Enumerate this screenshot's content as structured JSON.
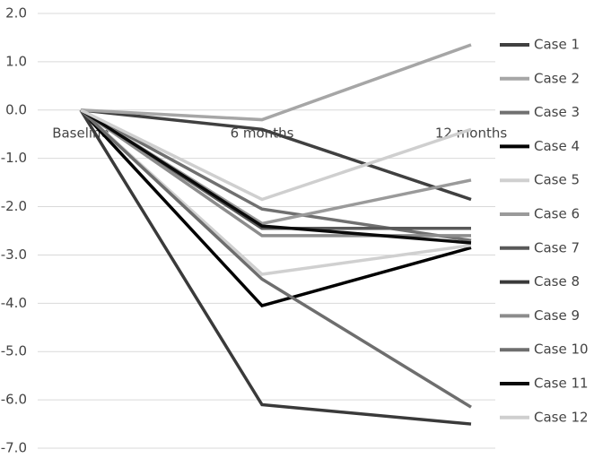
{
  "chart_data": {
    "type": "line",
    "categories": [
      "Baseline",
      "6 months",
      "12 months"
    ],
    "ylim": [
      -7,
      2
    ],
    "yticks": [
      {
        "value": 2,
        "label": "2.0"
      },
      {
        "value": 1,
        "label": "1.0"
      },
      {
        "value": 0,
        "label": "0.0"
      },
      {
        "value": -1,
        "label": "-1.0"
      },
      {
        "value": -2,
        "label": "-2.0"
      },
      {
        "value": -3,
        "label": "-3.0"
      },
      {
        "value": -4,
        "label": "-4.0"
      },
      {
        "value": -5,
        "label": "-5.0"
      },
      {
        "value": -6,
        "label": "-6.0"
      },
      {
        "value": -7,
        "label": "-7.0"
      }
    ],
    "grid": true,
    "legend": "right",
    "series": [
      {
        "name": "Case 1",
        "color": "#404040",
        "values": [
          0,
          -0.4,
          -1.85
        ]
      },
      {
        "name": "Case 2",
        "color": "#a6a6a6",
        "values": [
          0,
          -0.2,
          1.35
        ]
      },
      {
        "name": "Case 3",
        "color": "#707070",
        "values": [
          0,
          -2.05,
          -2.7
        ]
      },
      {
        "name": "Case 4",
        "color": "#000000",
        "values": [
          0,
          -4.05,
          -2.85
        ]
      },
      {
        "name": "Case 5",
        "color": "#d0d0d0",
        "values": [
          0,
          -3.4,
          -2.8
        ]
      },
      {
        "name": "Case 6",
        "color": "#9a9a9a",
        "values": [
          0,
          -2.35,
          -1.45
        ]
      },
      {
        "name": "Case 7",
        "color": "#595959",
        "values": [
          0,
          -2.45,
          -2.45
        ]
      },
      {
        "name": "Case 8",
        "color": "#3a3a3a",
        "values": [
          0,
          -6.1,
          -6.5
        ]
      },
      {
        "name": "Case 9",
        "color": "#8c8c8c",
        "values": [
          0,
          -2.6,
          -2.6
        ]
      },
      {
        "name": "Case 10",
        "color": "#6e6e6e",
        "values": [
          0,
          -3.5,
          -6.15
        ]
      },
      {
        "name": "Case 11",
        "color": "#0a0a0a",
        "values": [
          0,
          -2.4,
          -2.75
        ]
      },
      {
        "name": "Case 12",
        "color": "#cfcfcf",
        "values": [
          0,
          -1.85,
          -0.4
        ]
      }
    ]
  }
}
